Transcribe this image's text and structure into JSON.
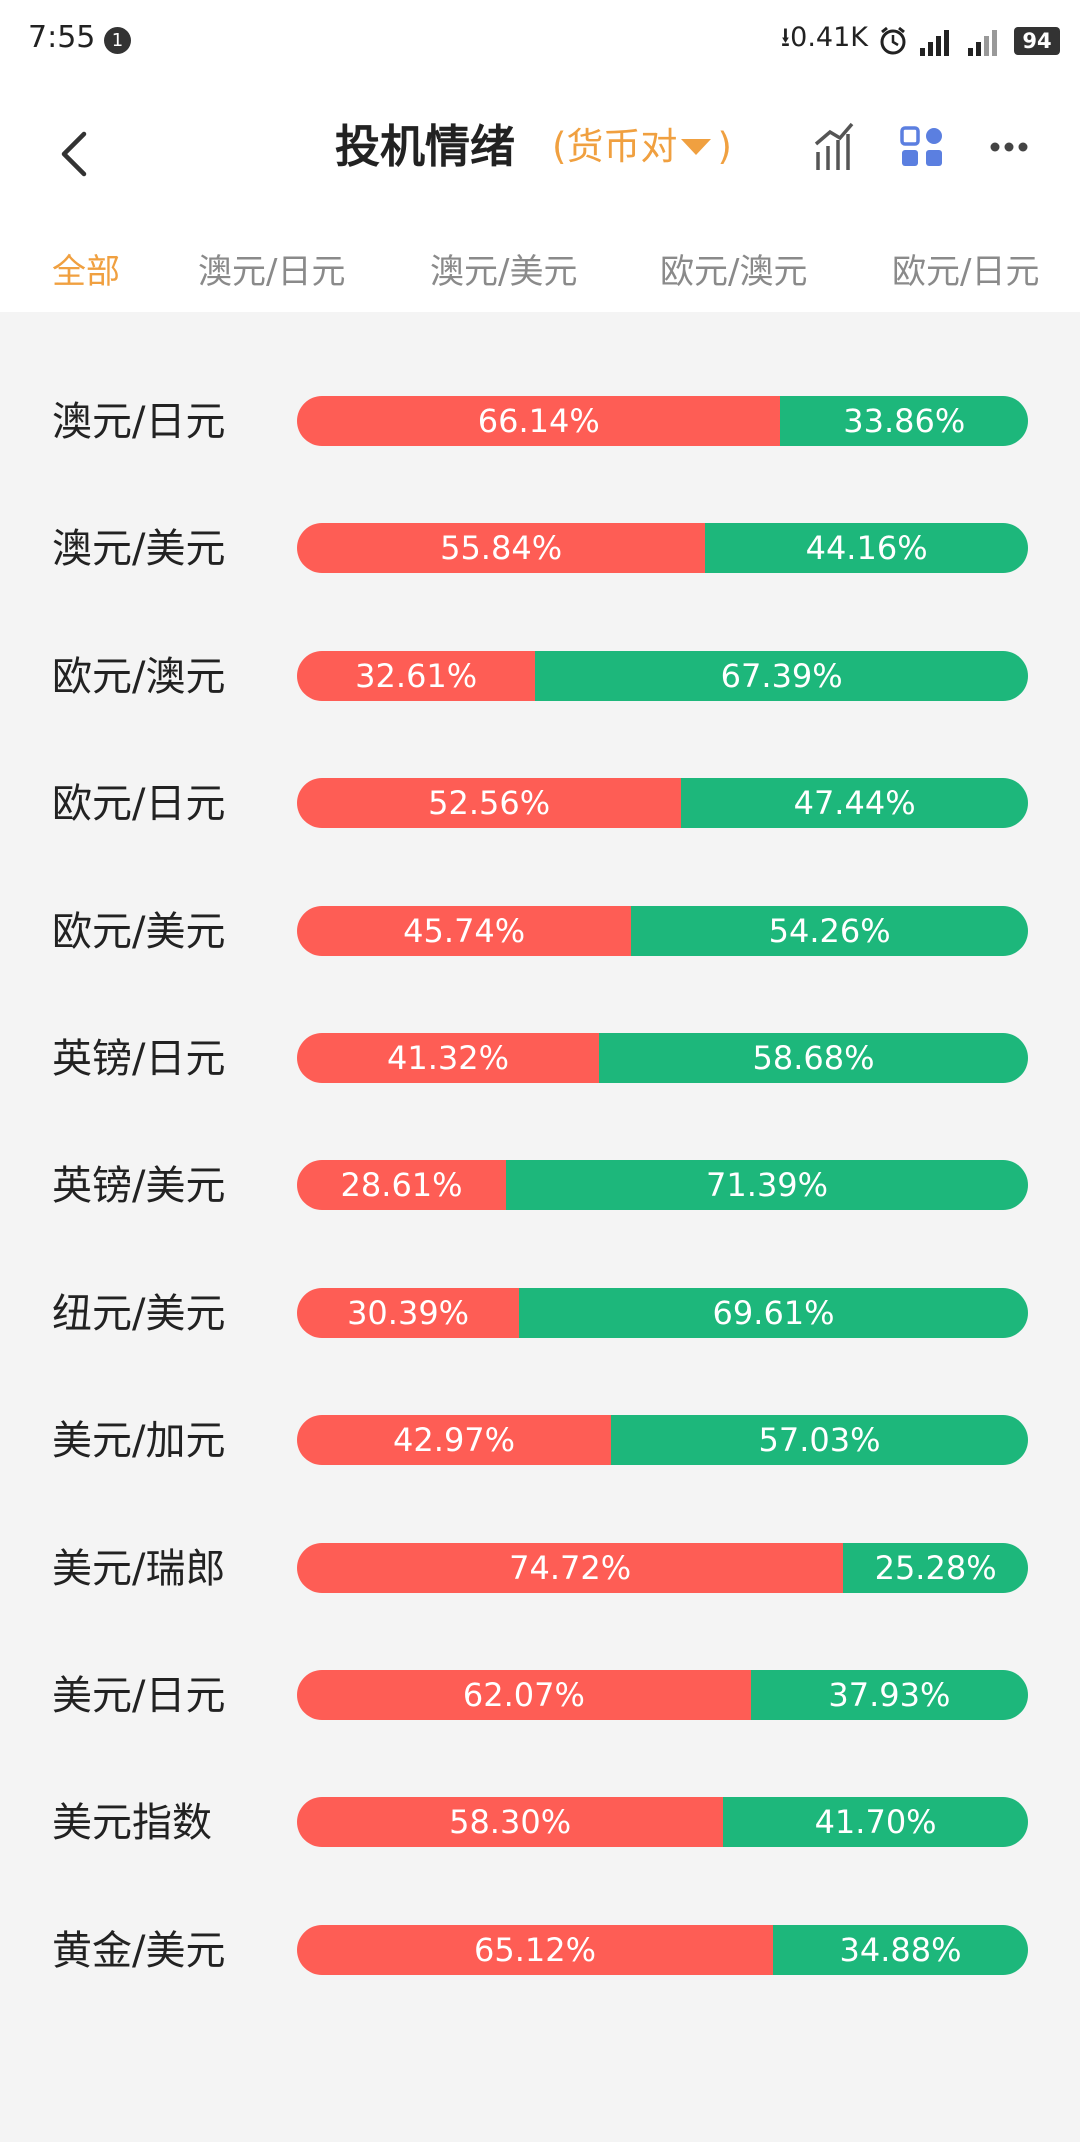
{
  "status_bar": {
    "time": "7:55",
    "notification_count": "1",
    "net_speed": "0.41K",
    "battery": "94"
  },
  "header": {
    "title": "投机情绪",
    "subtitle_select": "(货币对",
    "subtitle_close": ")",
    "accent_color": "#f0a040",
    "icons": [
      "back-arrow-icon",
      "chart-icon",
      "grid-icon",
      "more-icon"
    ]
  },
  "tabs": [
    {
      "label": "全部",
      "active": true
    },
    {
      "label": "澳元/日元",
      "active": false
    },
    {
      "label": "澳元/美元",
      "active": false
    },
    {
      "label": "欧元/澳元",
      "active": false
    },
    {
      "label": "欧元/日元",
      "active": false
    }
  ],
  "colors": {
    "long": "#fe5d55",
    "short": "#1db77b"
  },
  "sentiment": [
    {
      "pair": "澳元/日元",
      "long": "66.14%",
      "short": "33.86%"
    },
    {
      "pair": "澳元/美元",
      "long": "55.84%",
      "short": "44.16%"
    },
    {
      "pair": "欧元/澳元",
      "long": "32.61%",
      "short": "67.39%"
    },
    {
      "pair": "欧元/日元",
      "long": "52.56%",
      "short": "47.44%"
    },
    {
      "pair": "欧元/美元",
      "long": "45.74%",
      "short": "54.26%"
    },
    {
      "pair": "英镑/日元",
      "long": "41.32%",
      "short": "58.68%"
    },
    {
      "pair": "英镑/美元",
      "long": "28.61%",
      "short": "71.39%"
    },
    {
      "pair": "纽元/美元",
      "long": "30.39%",
      "short": "69.61%"
    },
    {
      "pair": "美元/加元",
      "long": "42.97%",
      "short": "57.03%"
    },
    {
      "pair": "美元/瑞郎",
      "long": "74.72%",
      "short": "25.28%"
    },
    {
      "pair": "美元/日元",
      "long": "62.07%",
      "short": "37.93%"
    },
    {
      "pair": "美元指数",
      "long": "58.30%",
      "short": "41.70%"
    },
    {
      "pair": "黄金/美元",
      "long": "65.12%",
      "short": "34.88%"
    }
  ]
}
